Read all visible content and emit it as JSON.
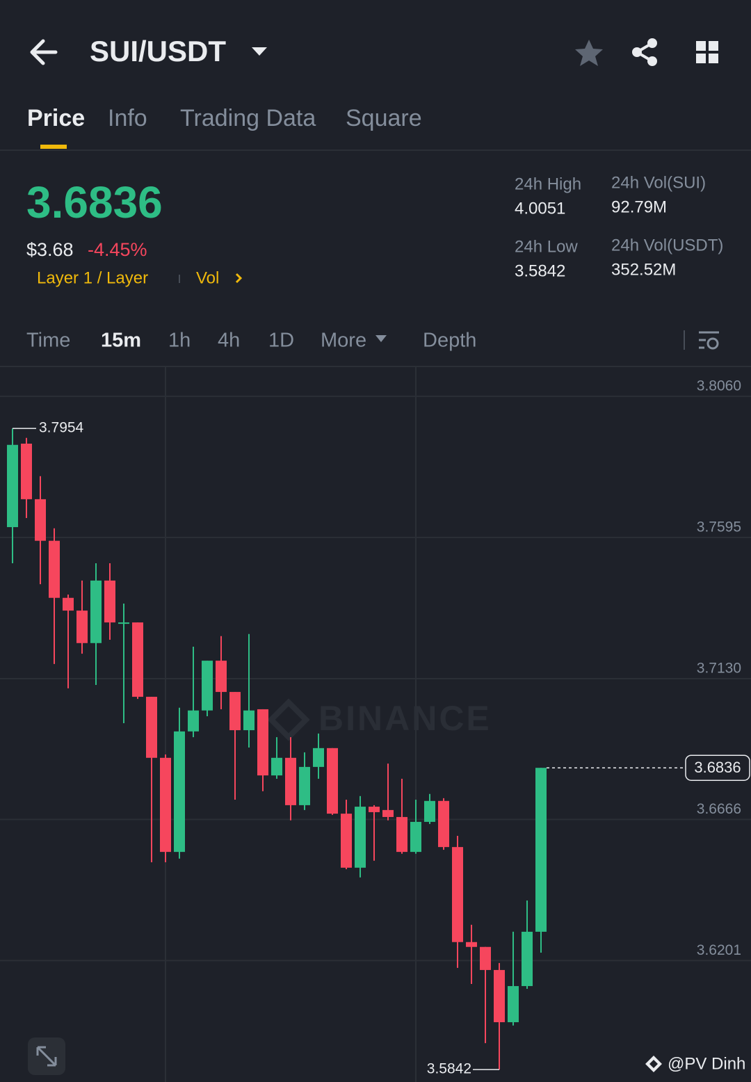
{
  "header": {
    "pair": "SUI/USDT"
  },
  "tabs": [
    "Price",
    "Info",
    "Trading Data",
    "Square"
  ],
  "ticker": {
    "price": "3.6836",
    "fiat": "$3.68",
    "change": "-4.45%",
    "tag": "Layer 1 / Layer",
    "vol": "Vol"
  },
  "stats": [
    {
      "label": "24h High",
      "value": "4.0051"
    },
    {
      "label": "24h Vol(SUI)",
      "value": "92.79M"
    },
    {
      "label": "24h Low",
      "value": "3.5842"
    },
    {
      "label": "24h Vol(USDT)",
      "value": "352.52M"
    }
  ],
  "intervals": [
    "Time",
    "15m",
    "1h",
    "4h",
    "1D",
    "More",
    "Depth"
  ],
  "watermark": "BINANCE",
  "credit": "@PV Dinh",
  "chart_data": {
    "type": "candlestick",
    "up_color": "#2ebd85",
    "down_color": "#f6465d",
    "open": [
      3.7629,
      3.7904,
      3.7721,
      3.7584,
      3.7396,
      3.7354,
      3.7247,
      3.7453,
      3.7311,
      3.7315,
      3.707,
      3.6869,
      3.6559,
      3.6956,
      3.7025,
      3.7189,
      3.7086,
      3.696,
      3.7029,
      3.6811,
      3.6869,
      3.6713,
      3.6839,
      3.6901,
      3.6685,
      3.6507,
      3.6708,
      3.6697,
      3.6674,
      3.6559,
      3.6658,
      3.6727,
      3.6575,
      3.6262,
      3.6246,
      3.617,
      3.5998,
      3.6117,
      3.6296
    ],
    "high": [
      3.7954,
      3.7923,
      3.7797,
      3.7625,
      3.7407,
      3.7453,
      3.751,
      3.751,
      3.7377,
      3.7315,
      3.707,
      3.688,
      3.7034,
      3.7235,
      3.7189,
      3.727,
      3.7086,
      3.7277,
      3.7029,
      3.6937,
      3.6937,
      3.6887,
      3.6949,
      3.6901,
      3.6731,
      3.6743,
      3.6713,
      3.685,
      3.68,
      3.6731,
      3.675,
      3.6736,
      3.6612,
      3.6319,
      3.6246,
      3.6193,
      3.6296,
      3.6399,
      3.6836
    ],
    "low": [
      3.751,
      3.7659,
      3.7441,
      3.7178,
      3.7098,
      3.7212,
      3.7109,
      3.7258,
      3.6983,
      3.7063,
      3.6525,
      3.6525,
      3.6537,
      3.6937,
      3.7006,
      3.7029,
      3.6731,
      3.6903,
      3.6759,
      3.68,
      3.6663,
      3.6697,
      3.68,
      3.6681,
      3.6502,
      3.6475,
      3.653,
      3.6663,
      3.6553,
      3.6553,
      3.6651,
      3.6566,
      3.6177,
      3.6124,
      3.5929,
      3.5842,
      3.5987,
      3.6108,
      3.6227
    ],
    "close": [
      3.79,
      3.7721,
      3.7584,
      3.7396,
      3.7354,
      3.7247,
      3.7453,
      3.7315,
      3.7315,
      3.707,
      3.6869,
      3.6559,
      3.6956,
      3.7025,
      3.7189,
      3.7086,
      3.696,
      3.7025,
      3.6811,
      3.6869,
      3.6713,
      3.6839,
      3.6901,
      3.6685,
      3.6507,
      3.6708,
      3.669,
      3.6674,
      3.6559,
      3.6658,
      3.6727,
      3.6575,
      3.6262,
      3.6246,
      3.617,
      3.5998,
      3.6117,
      3.6296,
      3.6836
    ],
    "ylim": [
      3.5801,
      3.8156
    ],
    "yticks": [
      {
        "value": 3.806,
        "label": "3.8060"
      },
      3.7595,
      {
        "value": 3.713,
        "label": "3.7130"
      },
      3.6666,
      3.6201
    ],
    "grid": true,
    "last_price": 3.6836,
    "high_marker": 3.7954,
    "low_marker": 3.5842
  }
}
